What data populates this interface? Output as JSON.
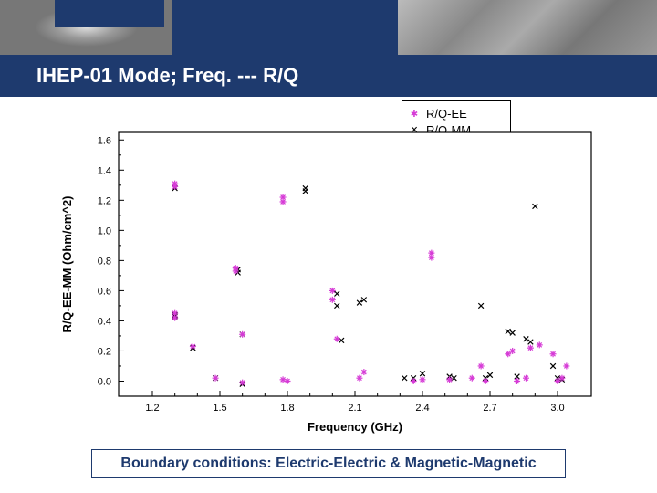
{
  "title": "IHEP-01 Mode; Freq. --- R/Q",
  "note": "Boundary conditions: Electric-Electric & Magnetic-Magnetic",
  "legend": {
    "ee": {
      "label": "R/Q-EE",
      "glyph": "✱",
      "color": "#d63bd6"
    },
    "mm": {
      "label": "R/Q-MM",
      "glyph": "×",
      "color": "#000000"
    }
  },
  "chart": {
    "type": "scatter",
    "xlabel": "Frequency (GHz)",
    "ylabel": "R/Q-EE-MM (Ohm/cm^2)",
    "label_fontsize": 13,
    "tick_fontsize": 11,
    "xlim": [
      1.05,
      3.15
    ],
    "ylim": [
      -0.1,
      1.65
    ],
    "xticks": [
      1.2,
      1.5,
      1.8,
      2.1,
      2.4,
      2.7,
      3.0
    ],
    "yticks": [
      0.0,
      0.2,
      0.4,
      0.6,
      0.8,
      1.0,
      1.2,
      1.4,
      1.6
    ],
    "frame_color": "#000000",
    "background_color": "#ffffff",
    "marker_size": 7,
    "series": {
      "ee": {
        "marker": "asterisk",
        "color": "#d63bd6",
        "points": [
          [
            1.3,
            1.31
          ],
          [
            1.3,
            1.29
          ],
          [
            1.3,
            0.45
          ],
          [
            1.3,
            0.42
          ],
          [
            1.38,
            0.23
          ],
          [
            1.48,
            0.02
          ],
          [
            1.57,
            0.75
          ],
          [
            1.57,
            0.73
          ],
          [
            1.6,
            0.31
          ],
          [
            1.6,
            -0.01
          ],
          [
            1.78,
            1.22
          ],
          [
            1.78,
            1.19
          ],
          [
            1.78,
            0.01
          ],
          [
            1.8,
            0.0
          ],
          [
            2.0,
            0.6
          ],
          [
            2.0,
            0.54
          ],
          [
            2.02,
            0.28
          ],
          [
            2.12,
            0.02
          ],
          [
            2.14,
            0.06
          ],
          [
            2.36,
            0.0
          ],
          [
            2.4,
            0.01
          ],
          [
            2.44,
            0.85
          ],
          [
            2.44,
            0.82
          ],
          [
            2.52,
            0.01
          ],
          [
            2.62,
            0.02
          ],
          [
            2.66,
            0.1
          ],
          [
            2.68,
            0.0
          ],
          [
            2.78,
            0.18
          ],
          [
            2.8,
            0.2
          ],
          [
            2.82,
            0.0
          ],
          [
            2.86,
            0.02
          ],
          [
            2.88,
            0.22
          ],
          [
            2.92,
            0.24
          ],
          [
            2.98,
            0.18
          ],
          [
            3.0,
            0.0
          ],
          [
            3.02,
            0.02
          ],
          [
            3.04,
            0.1
          ]
        ]
      },
      "mm": {
        "marker": "x",
        "color": "#000000",
        "points": [
          [
            1.3,
            1.28
          ],
          [
            1.3,
            0.44
          ],
          [
            1.3,
            0.43
          ],
          [
            1.38,
            0.22
          ],
          [
            1.48,
            0.02
          ],
          [
            1.58,
            0.74
          ],
          [
            1.58,
            0.72
          ],
          [
            1.6,
            0.31
          ],
          [
            1.6,
            -0.02
          ],
          [
            1.88,
            1.28
          ],
          [
            1.88,
            1.26
          ],
          [
            2.02,
            0.58
          ],
          [
            2.02,
            0.5
          ],
          [
            2.04,
            0.27
          ],
          [
            2.12,
            0.52
          ],
          [
            2.14,
            0.54
          ],
          [
            2.32,
            0.02
          ],
          [
            2.36,
            0.02
          ],
          [
            2.4,
            0.05
          ],
          [
            2.52,
            0.03
          ],
          [
            2.54,
            0.02
          ],
          [
            2.66,
            0.5
          ],
          [
            2.68,
            0.02
          ],
          [
            2.7,
            0.04
          ],
          [
            2.78,
            0.33
          ],
          [
            2.8,
            0.32
          ],
          [
            2.82,
            0.03
          ],
          [
            2.86,
            0.28
          ],
          [
            2.88,
            0.26
          ],
          [
            2.9,
            1.16
          ],
          [
            2.98,
            0.1
          ],
          [
            3.0,
            0.02
          ],
          [
            3.02,
            0.01
          ]
        ]
      }
    }
  }
}
